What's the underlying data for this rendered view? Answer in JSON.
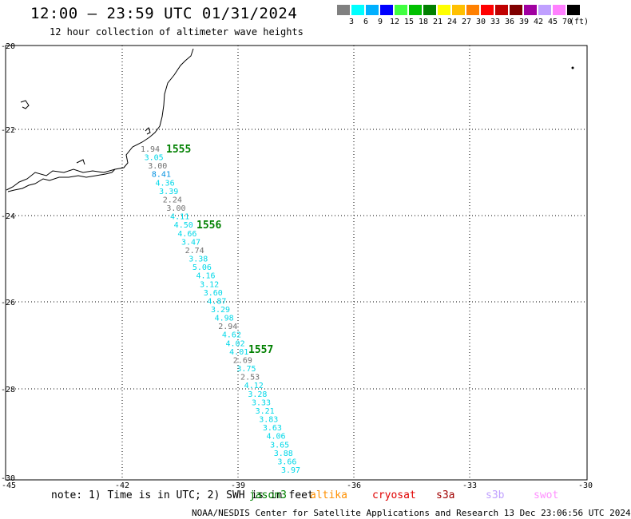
{
  "title": "12:00 – 23:59 UTC 01/31/2024",
  "subtitle": "12 hour collection of altimeter wave heights",
  "legend": {
    "unit": "(ft)",
    "labels": [
      "3",
      "6",
      "9",
      "12",
      "15",
      "18",
      "21",
      "24",
      "27",
      "30",
      "33",
      "36",
      "39",
      "42",
      "45",
      "70"
    ],
    "colors": [
      "#808080",
      "#00ffff",
      "#00b0ff",
      "#0000ff",
      "#40ff40",
      "#00c000",
      "#008000",
      "#ffff00",
      "#ffc000",
      "#ff8000",
      "#ff0000",
      "#c00000",
      "#800000",
      "#a000a0",
      "#c0a0ff",
      "#ff80ff",
      "#000000"
    ]
  },
  "map": {
    "lon_ticks": [
      "-45",
      "-42",
      "-39",
      "-36",
      "-33",
      "-30"
    ],
    "lat_ticks": [
      "-20",
      "-22",
      "-24",
      "-26",
      "-28",
      "-30"
    ],
    "passes": [
      "1555",
      "1556",
      "1557"
    ],
    "swh_values": [
      {
        "v": "1.94",
        "c": "#707070"
      },
      {
        "v": "3.05",
        "c": "#00d8e8"
      },
      {
        "v": "3.00",
        "c": "#707070"
      },
      {
        "v": "8.41",
        "c": "#0090e0"
      },
      {
        "v": "4.36",
        "c": "#00d8e8"
      },
      {
        "v": "3.39",
        "c": "#00d8e8"
      },
      {
        "v": "2.24",
        "c": "#707070"
      },
      {
        "v": "3.00",
        "c": "#707070"
      },
      {
        "v": "4.11",
        "c": "#00d8e8"
      },
      {
        "v": "4.50",
        "c": "#00d8e8"
      },
      {
        "v": "4.66",
        "c": "#00d8e8"
      },
      {
        "v": "3.47",
        "c": "#00d8e8"
      },
      {
        "v": "2.74",
        "c": "#707070"
      },
      {
        "v": "3.38",
        "c": "#00d8e8"
      },
      {
        "v": "5.06",
        "c": "#00d8e8"
      },
      {
        "v": "4.16",
        "c": "#00d8e8"
      },
      {
        "v": "3.12",
        "c": "#00d8e8"
      },
      {
        "v": "3.60",
        "c": "#00d8e8"
      },
      {
        "v": "4.87",
        "c": "#00d8e8"
      },
      {
        "v": "3.29",
        "c": "#00d8e8"
      },
      {
        "v": "4.98",
        "c": "#00d8e8"
      },
      {
        "v": "2.94",
        "c": "#707070"
      },
      {
        "v": "4.62",
        "c": "#00d8e8"
      },
      {
        "v": "4.02",
        "c": "#00d8e8"
      },
      {
        "v": "4.01",
        "c": "#00d8e8"
      },
      {
        "v": "2.69",
        "c": "#707070"
      },
      {
        "v": "3.75",
        "c": "#00d8e8"
      },
      {
        "v": "2.53",
        "c": "#707070"
      },
      {
        "v": "4.12",
        "c": "#00d8e8"
      },
      {
        "v": "3.28",
        "c": "#00d8e8"
      },
      {
        "v": "3.33",
        "c": "#00d8e8"
      },
      {
        "v": "3.21",
        "c": "#00d8e8"
      },
      {
        "v": "3.83",
        "c": "#00d8e8"
      },
      {
        "v": "3.63",
        "c": "#00d8e8"
      },
      {
        "v": "4.06",
        "c": "#00d8e8"
      },
      {
        "v": "3.65",
        "c": "#00d8e8"
      },
      {
        "v": "3.88",
        "c": "#00d8e8"
      },
      {
        "v": "3.66",
        "c": "#00d8e8"
      },
      {
        "v": "3.97",
        "c": "#00d8e8"
      }
    ]
  },
  "note": "note: 1) Time is in UTC; 2) SWH is in feet",
  "satellites": [
    {
      "name": "jason3",
      "color": "#008000"
    },
    {
      "name": "altika",
      "color": "#ff9000"
    },
    {
      "name": "cryosat",
      "color": "#e00000"
    },
    {
      "name": "s3a",
      "color": "#a00000"
    },
    {
      "name": "s3b",
      "color": "#c0a0ff"
    },
    {
      "name": "swot",
      "color": "#ff90ff"
    }
  ],
  "footer": "NOAA/NESDIS Center for Satellite Applications and Research   13 Dec 23:06:56 UTC 2024"
}
